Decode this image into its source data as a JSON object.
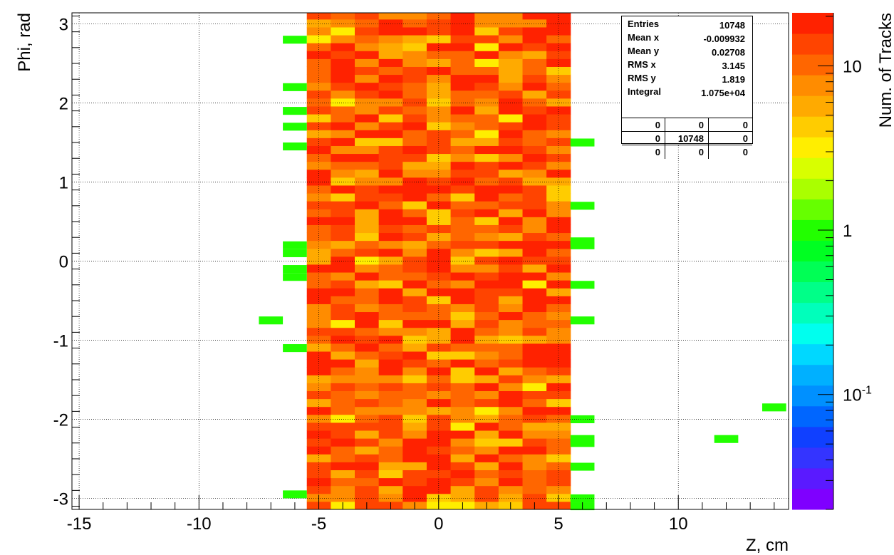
{
  "chart_data": {
    "type": "heatmap",
    "xlabel": "Z, cm",
    "ylabel": "Phi, rad",
    "zlabel": "Num. of Tracks",
    "xlim": [
      -15.3,
      14.6
    ],
    "ylim": [
      -3.14,
      3.14
    ],
    "x_ticks": [
      "-15",
      "-10",
      "-5",
      "0",
      "5",
      "10"
    ],
    "x_tick_values": [
      -15,
      -10,
      -5,
      0,
      5,
      10
    ],
    "y_ticks": [
      "-3",
      "-2",
      "-1",
      "0",
      "1",
      "2",
      "3"
    ],
    "y_tick_values": [
      -3,
      -2,
      -1,
      0,
      1,
      2,
      3
    ],
    "z_scale": "log",
    "z_range": [
      0.02,
      21
    ],
    "z_ticks": [
      "10",
      "1",
      "10^-1"
    ],
    "z_tick_values": [
      10,
      1,
      0.1
    ],
    "grid": true,
    "palette": [
      "#7f00ff",
      "#5a1aff",
      "#3434ff",
      "#1040ff",
      "#0066ff",
      "#0090ff",
      "#00b0ff",
      "#00d8ff",
      "#00ffee",
      "#00ffbb",
      "#00ff88",
      "#00ff55",
      "#00ff22",
      "#22ff00",
      "#66ff00",
      "#aaff00",
      "#d8ff00",
      "#ffee00",
      "#ffcc00",
      "#ffaa00",
      "#ff8c00",
      "#ff6600",
      "#ff4400",
      "#ff2200"
    ],
    "dense_region": {
      "x_range": [
        -5.5,
        5.5
      ],
      "y_range": [
        -3.14,
        3.14
      ],
      "x_bin_width": 1.0,
      "y_bin_width": 0.1,
      "value_range": [
        3,
        21
      ]
    },
    "sparse_bins": [
      {
        "x": -6,
        "y": 2.8,
        "value": 1
      },
      {
        "x": -6,
        "y": 2.2,
        "value": 1
      },
      {
        "x": -6,
        "y": 1.9,
        "value": 1
      },
      {
        "x": -6,
        "y": 1.7,
        "value": 1
      },
      {
        "x": -6,
        "y": 1.45,
        "value": 1
      },
      {
        "x": -6,
        "y": 0.2,
        "value": 1
      },
      {
        "x": -6,
        "y": 0.1,
        "value": 1
      },
      {
        "x": -6,
        "y": -0.1,
        "value": 1
      },
      {
        "x": -6,
        "y": -0.2,
        "value": 1
      },
      {
        "x": -7,
        "y": -0.75,
        "value": 1
      },
      {
        "x": -6,
        "y": -1.1,
        "value": 1
      },
      {
        "x": -6,
        "y": -2.95,
        "value": 1
      },
      {
        "x": 6,
        "y": 1.5,
        "value": 1
      },
      {
        "x": 6,
        "y": 0.7,
        "value": 1
      },
      {
        "x": 6,
        "y": 0.25,
        "value": 1
      },
      {
        "x": 6,
        "y": 0.2,
        "value": 1
      },
      {
        "x": 6,
        "y": -0.3,
        "value": 1
      },
      {
        "x": 6,
        "y": -0.75,
        "value": 1
      },
      {
        "x": 6,
        "y": -2.0,
        "value": 1
      },
      {
        "x": 6,
        "y": -2.25,
        "value": 1
      },
      {
        "x": 6,
        "y": -2.3,
        "value": 1
      },
      {
        "x": 6,
        "y": -2.6,
        "value": 1
      },
      {
        "x": 6,
        "y": -3.0,
        "value": 1
      },
      {
        "x": 6,
        "y": -3.1,
        "value": 1
      },
      {
        "x": 12,
        "y": -2.25,
        "value": 1
      },
      {
        "x": 14,
        "y": -1.85,
        "value": 1
      }
    ]
  },
  "stats": {
    "rows": [
      {
        "key": "Entries",
        "value": "10748"
      },
      {
        "key": "Mean x",
        "value": "-0.009932"
      },
      {
        "key": "Mean y",
        "value": "0.02708"
      },
      {
        "key": "RMS x",
        "value": "3.145"
      },
      {
        "key": "RMS y",
        "value": "1.819"
      },
      {
        "key": "Integral",
        "value": "1.075e+04"
      }
    ],
    "grid": [
      [
        "0",
        "0",
        "0"
      ],
      [
        "0",
        "10748",
        "0"
      ],
      [
        "0",
        "0",
        "0"
      ]
    ]
  }
}
